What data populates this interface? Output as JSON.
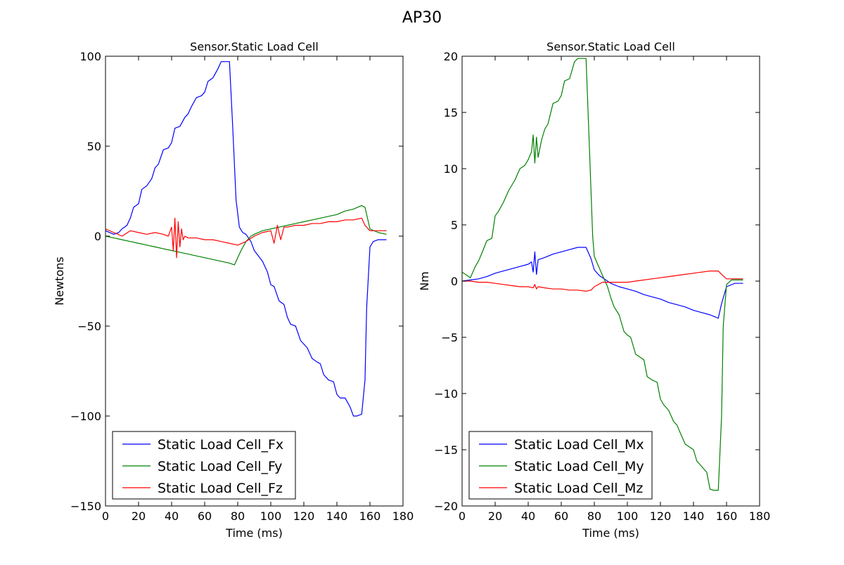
{
  "figure": {
    "suptitle": "AP30"
  },
  "chart_data": [
    {
      "type": "line",
      "title": "Sensor.Static Load Cell",
      "xlabel": "Time (ms)",
      "ylabel": "Newtons",
      "xlim": [
        0,
        180
      ],
      "ylim": [
        -150,
        100
      ],
      "xticks": [
        0,
        20,
        40,
        60,
        80,
        100,
        120,
        140,
        160,
        180
      ],
      "yticks": [
        -150,
        -100,
        -50,
        0,
        50,
        100
      ],
      "grid": false,
      "legend_position": "lower-left",
      "series": [
        {
          "name": "Static Load Cell_Fx",
          "color": "#0000ff",
          "x": [
            0,
            5,
            8,
            10,
            13,
            15,
            17,
            20,
            22,
            25,
            28,
            30,
            32,
            35,
            38,
            40,
            42,
            45,
            48,
            50,
            52,
            55,
            58,
            60,
            62,
            65,
            68,
            70,
            72,
            75,
            77,
            79,
            81,
            83,
            85,
            88,
            90,
            95,
            98,
            100,
            102,
            105,
            108,
            110,
            112,
            115,
            118,
            120,
            122,
            125,
            128,
            130,
            132,
            135,
            138,
            140,
            142,
            145,
            148,
            150,
            152,
            155,
            157,
            158,
            160,
            162,
            165,
            170
          ],
          "y": [
            3,
            1,
            2,
            4,
            6,
            10,
            16,
            18,
            26,
            28,
            32,
            38,
            40,
            48,
            49,
            52,
            60,
            61,
            66,
            68,
            72,
            77,
            78,
            80,
            86,
            88,
            93,
            97,
            97,
            97,
            60,
            20,
            5,
            2,
            1,
            -3,
            -8,
            -14,
            -20,
            -27,
            -28,
            -36,
            -38,
            -45,
            -49,
            -50,
            -58,
            -60,
            -62,
            -68,
            -70,
            -71,
            -77,
            -80,
            -81,
            -88,
            -90,
            -90,
            -95,
            -100,
            -100,
            -99,
            -80,
            -40,
            -6,
            -3,
            -2,
            -2
          ]
        },
        {
          "name": "Static Load Cell_Fy",
          "color": "#008000",
          "x": [
            0,
            5,
            10,
            15,
            20,
            25,
            30,
            35,
            40,
            45,
            50,
            55,
            60,
            65,
            70,
            75,
            78,
            80,
            82,
            85,
            88,
            90,
            95,
            100,
            105,
            110,
            115,
            120,
            125,
            130,
            135,
            140,
            145,
            150,
            155,
            157,
            160,
            165,
            170
          ],
          "y": [
            0,
            -1,
            -2,
            -3,
            -4,
            -5,
            -6,
            -7,
            -8,
            -9,
            -10,
            -11,
            -12,
            -13,
            -14,
            -15,
            -16,
            -12,
            -8,
            -3,
            0,
            1,
            3,
            4,
            5,
            6,
            7,
            8,
            9,
            10,
            11,
            12,
            14,
            15,
            17,
            16,
            4,
            2,
            1
          ]
        },
        {
          "name": "Static Load Cell_Fz",
          "color": "#ff0000",
          "x": [
            0,
            5,
            10,
            15,
            20,
            25,
            30,
            35,
            38,
            40,
            41,
            42,
            43,
            44,
            45,
            46,
            47,
            48,
            50,
            55,
            60,
            65,
            70,
            75,
            80,
            85,
            90,
            95,
            100,
            102,
            104,
            106,
            108,
            110,
            115,
            120,
            125,
            130,
            135,
            140,
            145,
            150,
            155,
            157,
            160,
            165,
            170
          ],
          "y": [
            4,
            2,
            0,
            3,
            2,
            1,
            2,
            1,
            0,
            5,
            -8,
            10,
            -12,
            8,
            -6,
            4,
            -2,
            0,
            -1,
            -1,
            -2,
            -2,
            -3,
            -4,
            -5,
            -3,
            0,
            2,
            3,
            -4,
            6,
            -2,
            5,
            5,
            6,
            6,
            7,
            7,
            8,
            8,
            9,
            9,
            10,
            6,
            3,
            3,
            3
          ]
        }
      ]
    },
    {
      "type": "line",
      "title": "Sensor.Static Load Cell",
      "xlabel": "Time (ms)",
      "ylabel": "Nm",
      "xlim": [
        0,
        180
      ],
      "ylim": [
        -20,
        20
      ],
      "xticks": [
        0,
        20,
        40,
        60,
        80,
        100,
        120,
        140,
        160,
        180
      ],
      "yticks": [
        -20,
        -15,
        -10,
        -5,
        0,
        5,
        10,
        15,
        20
      ],
      "grid": false,
      "legend_position": "lower-left",
      "series": [
        {
          "name": "Static Load Cell_Mx",
          "color": "#0000ff",
          "x": [
            0,
            5,
            10,
            15,
            20,
            25,
            30,
            35,
            40,
            42,
            43,
            44,
            45,
            46,
            50,
            55,
            60,
            65,
            70,
            75,
            78,
            80,
            83,
            85,
            88,
            90,
            95,
            100,
            105,
            110,
            115,
            120,
            125,
            130,
            135,
            140,
            145,
            150,
            155,
            157,
            160,
            165,
            170
          ],
          "y": [
            0,
            0.1,
            0.2,
            0.4,
            0.7,
            0.9,
            1.1,
            1.3,
            1.5,
            1.7,
            0.8,
            2.6,
            0.6,
            1.9,
            2.1,
            2.4,
            2.6,
            2.8,
            3.0,
            3.0,
            2.0,
            1.0,
            0.5,
            0.3,
            0,
            -0.2,
            -0.5,
            -0.7,
            -0.9,
            -1.2,
            -1.4,
            -1.6,
            -1.9,
            -2.1,
            -2.3,
            -2.6,
            -2.8,
            -3.0,
            -3.3,
            -2.0,
            -0.5,
            -0.2,
            -0.2
          ]
        },
        {
          "name": "Static Load Cell_My",
          "color": "#008000",
          "x": [
            0,
            3,
            5,
            8,
            10,
            12,
            15,
            18,
            20,
            22,
            25,
            28,
            30,
            32,
            35,
            38,
            40,
            42,
            43,
            44,
            45,
            46,
            48,
            50,
            52,
            55,
            58,
            60,
            62,
            65,
            68,
            70,
            72,
            75,
            77,
            79,
            80,
            82,
            85,
            88,
            90,
            92,
            95,
            98,
            100,
            102,
            105,
            108,
            110,
            112,
            115,
            118,
            120,
            122,
            125,
            128,
            130,
            132,
            135,
            138,
            140,
            142,
            145,
            148,
            150,
            152,
            155,
            157,
            158,
            160,
            163,
            165,
            170
          ],
          "y": [
            0.8,
            0.5,
            0.3,
            1.3,
            1.8,
            2.5,
            3.6,
            3.8,
            5.8,
            6.2,
            7.0,
            8.0,
            8.5,
            9.0,
            10.0,
            10.3,
            10.8,
            11.5,
            13.0,
            10.5,
            12.8,
            11.0,
            12.5,
            13.5,
            14.0,
            15.8,
            16.0,
            16.5,
            17.8,
            18.0,
            19.5,
            19.8,
            19.8,
            19.8,
            12.0,
            4.0,
            2.2,
            1.5,
            0.5,
            -0.5,
            -1.5,
            -2.3,
            -3.0,
            -4.5,
            -4.8,
            -5.0,
            -6.5,
            -6.8,
            -7.0,
            -8.5,
            -8.8,
            -9.0,
            -10.5,
            -11.0,
            -11.5,
            -12.5,
            -12.8,
            -13.5,
            -14.5,
            -14.8,
            -15.0,
            -16.0,
            -16.5,
            -17.0,
            -18.5,
            -18.6,
            -18.6,
            -12.0,
            -4.0,
            -0.3,
            0.1,
            0.1,
            0.1
          ]
        },
        {
          "name": "Static Load Cell_Mz",
          "color": "#ff0000",
          "x": [
            0,
            5,
            10,
            15,
            20,
            25,
            30,
            35,
            40,
            43,
            44,
            45,
            46,
            50,
            55,
            60,
            65,
            70,
            75,
            78,
            80,
            85,
            90,
            95,
            100,
            105,
            110,
            115,
            120,
            125,
            130,
            135,
            140,
            145,
            150,
            155,
            157,
            160,
            165,
            170
          ],
          "y": [
            0,
            0,
            -0.1,
            -0.1,
            -0.2,
            -0.3,
            -0.4,
            -0.5,
            -0.5,
            -0.6,
            -0.3,
            -0.7,
            -0.5,
            -0.6,
            -0.7,
            -0.7,
            -0.8,
            -0.8,
            -0.9,
            -0.8,
            -0.5,
            -0.1,
            -0.1,
            -0.1,
            -0.1,
            0,
            0.1,
            0.2,
            0.3,
            0.4,
            0.5,
            0.6,
            0.7,
            0.8,
            0.9,
            0.9,
            0.6,
            0.2,
            0.2,
            0.2
          ]
        }
      ]
    }
  ]
}
